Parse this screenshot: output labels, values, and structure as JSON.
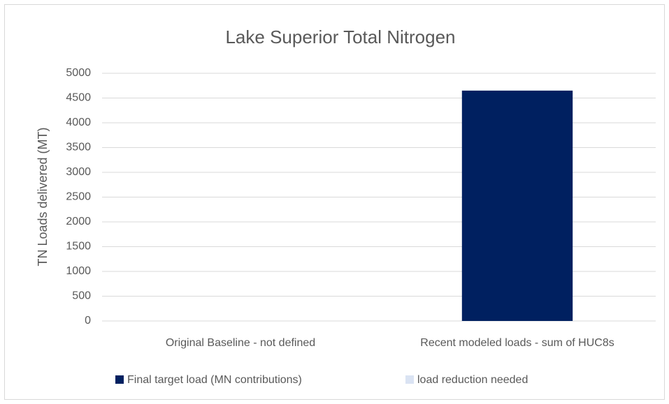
{
  "chart_data": {
    "type": "stacked_bar",
    "title": "Lake Superior Total Nitrogen",
    "y_label": "TN Loads delivered (MT)",
    "categories": [
      "Original Baseline - not defined",
      "Recent modeled loads - sum of HUC8s"
    ],
    "series": [
      {
        "name": "Final target load (MN contributions)",
        "color": "#002060",
        "values": [
          null,
          4650
        ]
      },
      {
        "name": "load reduction needed",
        "color": "#dae3f3",
        "values": [
          null,
          0
        ]
      }
    ],
    "ylim": [
      0,
      5000
    ],
    "yticks": [
      0,
      500,
      1000,
      1500,
      2000,
      2500,
      3000,
      3500,
      4000,
      4500,
      5000
    ],
    "grid": true,
    "legend": "bottom"
  }
}
